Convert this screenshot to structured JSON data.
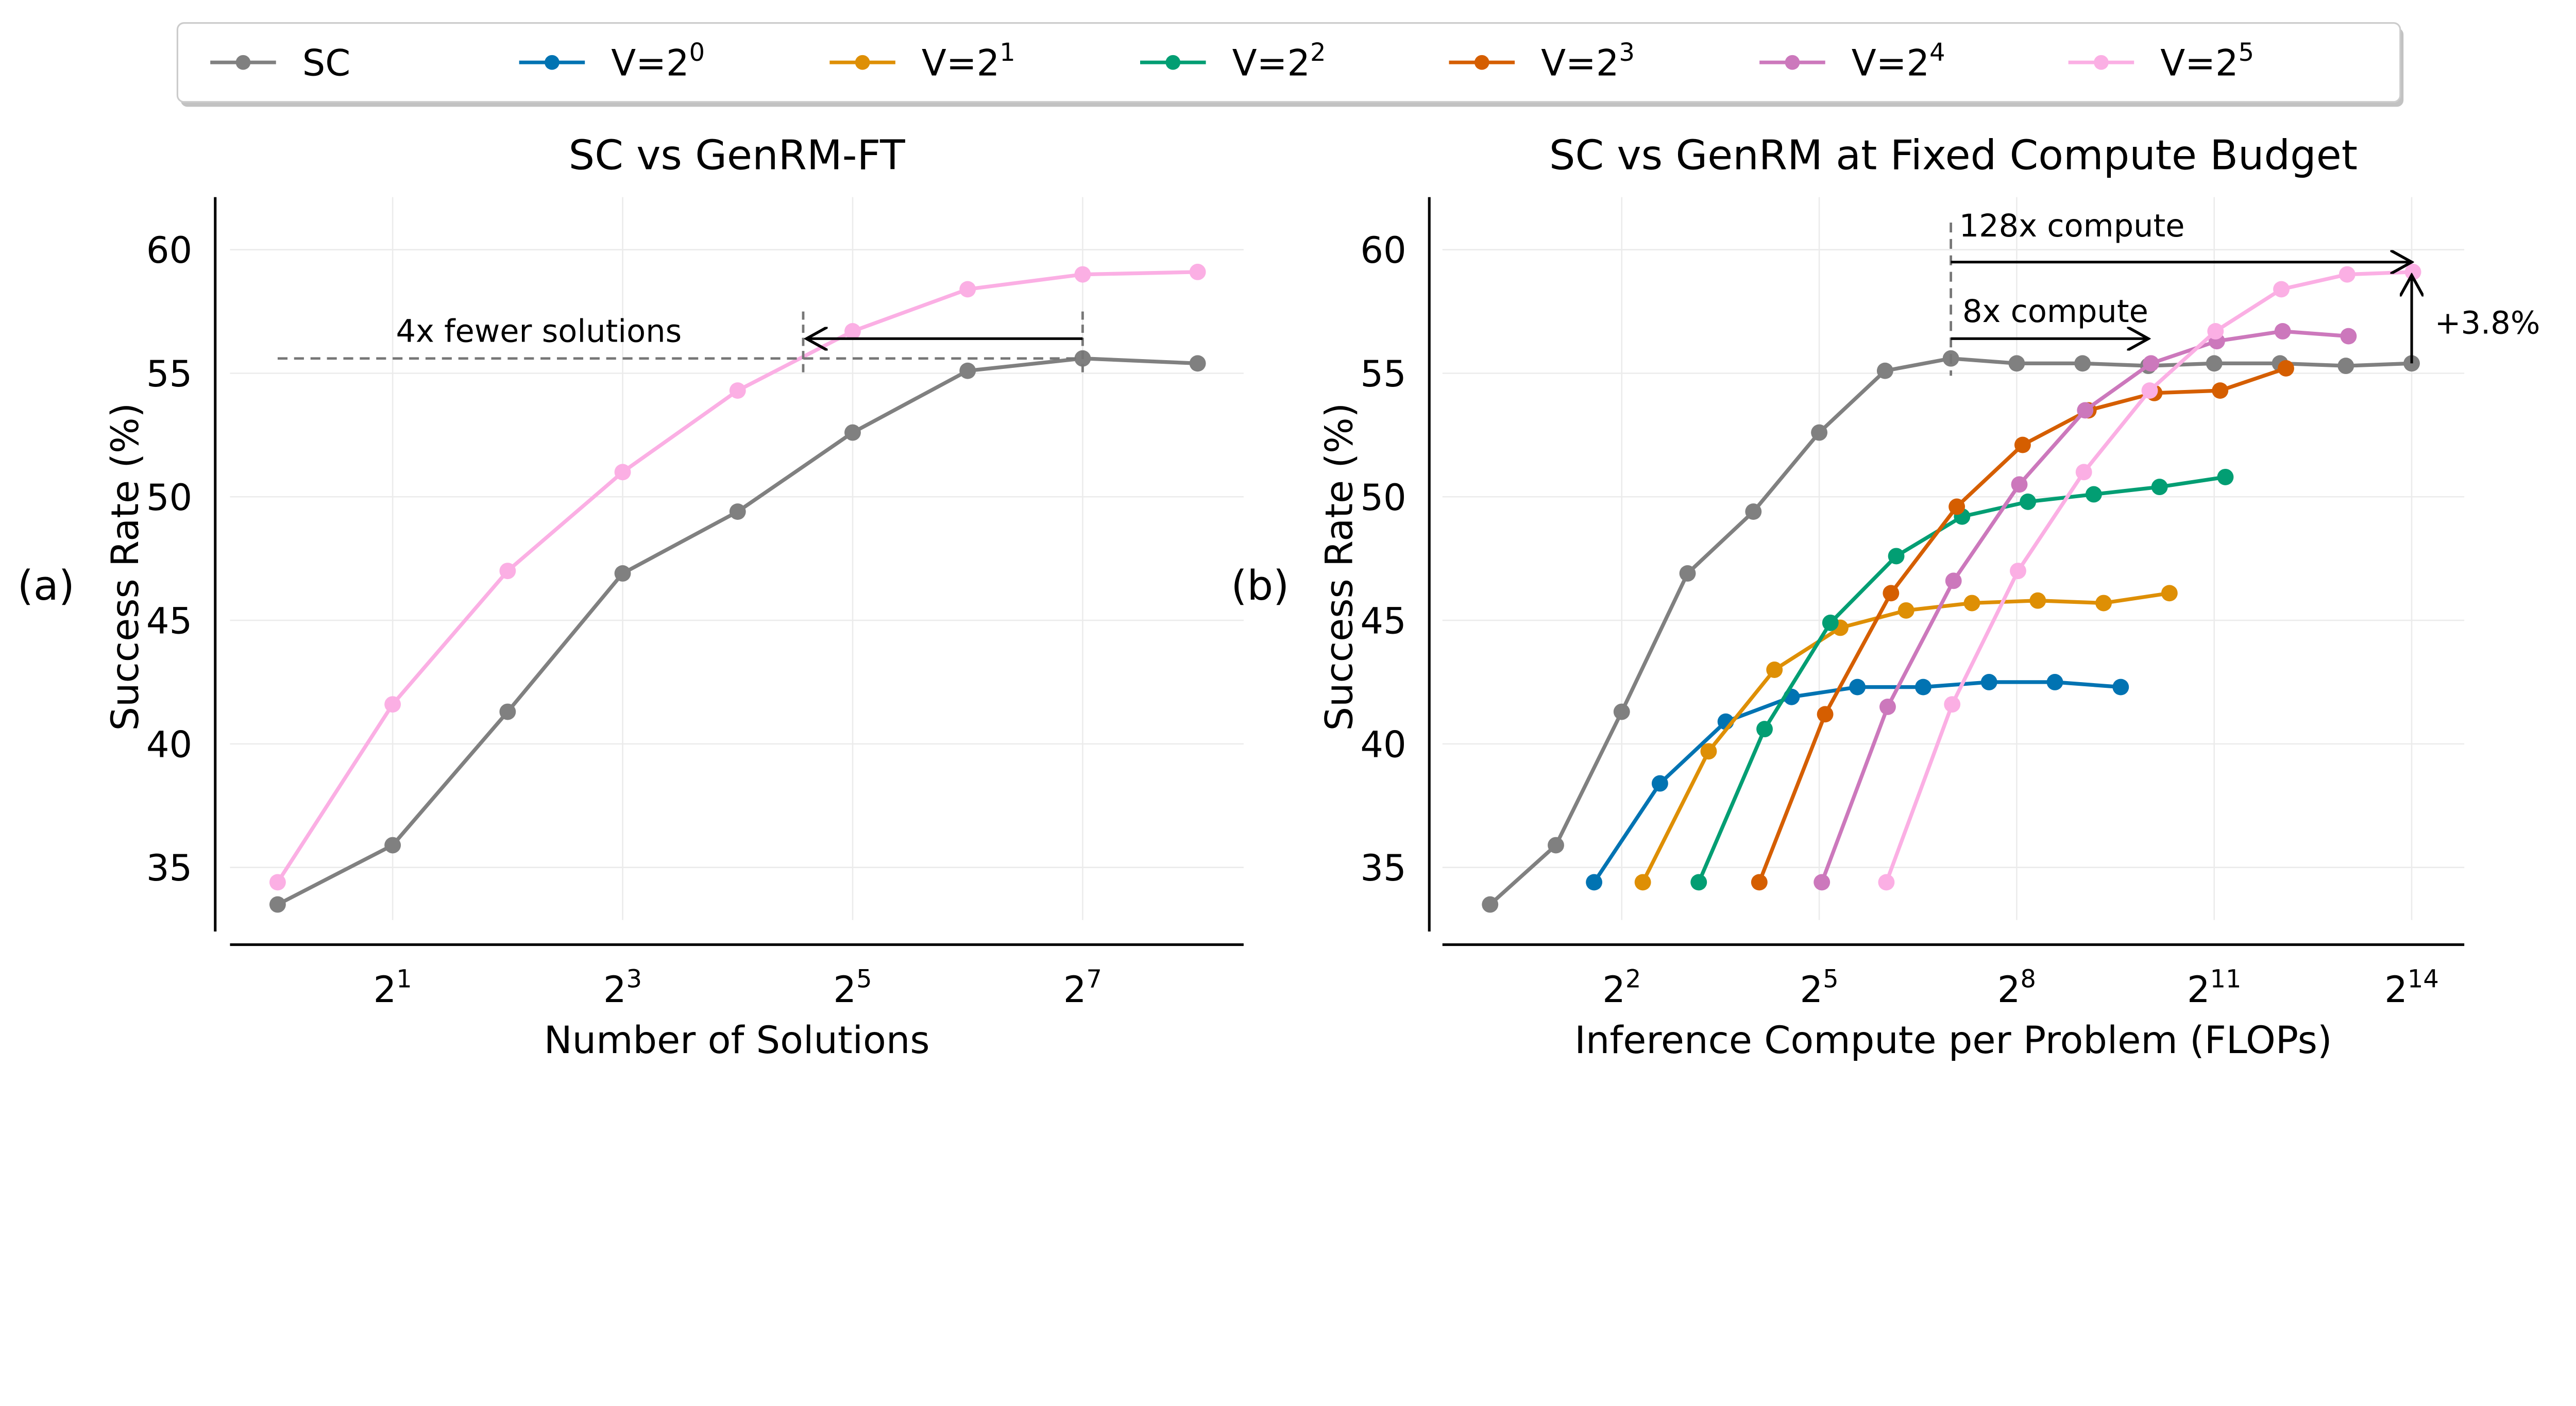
{
  "legend": {
    "placement": "top-center",
    "entries": [
      {
        "label": "SC",
        "sup": "",
        "color": "#808080"
      },
      {
        "label": "V=2",
        "sup": "0",
        "color": "#0173b2"
      },
      {
        "label": "V=2",
        "sup": "1",
        "color": "#de8f05"
      },
      {
        "label": "V=2",
        "sup": "2",
        "color": "#029e73"
      },
      {
        "label": "V=2",
        "sup": "3",
        "color": "#d55e00"
      },
      {
        "label": "V=2",
        "sup": "4",
        "color": "#cc78bc"
      },
      {
        "label": "V=2",
        "sup": "5",
        "color": "#fbafe4"
      }
    ]
  },
  "chart_data": [
    {
      "type": "line",
      "panel_label": "(a)",
      "title": "SC vs GenRM-FT",
      "xlabel": "Number of Solutions",
      "ylabel": "Success Rate (%)",
      "x_scale": "log2",
      "x_exponents": [
        0,
        1,
        2,
        3,
        4,
        5,
        6,
        7,
        8
      ],
      "xticks": [
        {
          "base": "2",
          "exp": "1"
        },
        {
          "base": "2",
          "exp": "3"
        },
        {
          "base": "2",
          "exp": "5"
        },
        {
          "base": "2",
          "exp": "7"
        }
      ],
      "yticks": [
        "35",
        "40",
        "45",
        "50",
        "55",
        "60"
      ],
      "ylim": [
        32.3,
        62
      ],
      "grid": true,
      "series": [
        {
          "name": "SC",
          "color": "#808080",
          "values": [
            33.5,
            35.9,
            41.3,
            46.9,
            49.4,
            52.6,
            55.1,
            55.6,
            55.4
          ]
        },
        {
          "name": "V=2^5",
          "color": "#fbafe4",
          "values": [
            34.4,
            41.6,
            47.0,
            51.0,
            54.3,
            56.7,
            58.4,
            59.0,
            59.1
          ]
        }
      ],
      "annotations": [
        {
          "text": "4x fewer solutions",
          "type": "arrow",
          "from_exp": 7,
          "to_exp": 4.57,
          "y": 56.4,
          "dashed_level": 55.6
        }
      ]
    },
    {
      "type": "line",
      "panel_label": "(b)",
      "title": "SC vs GenRM at Fixed Compute Budget",
      "xlabel": "Inference Compute per Problem (FLOPs)",
      "ylabel": "Success Rate (%)",
      "x_scale": "log2",
      "xticks": [
        {
          "base": "2",
          "exp": "2"
        },
        {
          "base": "2",
          "exp": "5"
        },
        {
          "base": "2",
          "exp": "8"
        },
        {
          "base": "2",
          "exp": "11"
        },
        {
          "base": "2",
          "exp": "14"
        }
      ],
      "yticks": [
        "35",
        "40",
        "45",
        "50",
        "55",
        "60"
      ],
      "ylim": [
        32.3,
        62
      ],
      "grid": true,
      "series": [
        {
          "name": "SC",
          "color": "#808080",
          "x_exponents": [
            0,
            1,
            2,
            3,
            4,
            5,
            6,
            7,
            8,
            9,
            10,
            11,
            12,
            13,
            14
          ],
          "values": [
            33.5,
            35.9,
            41.3,
            46.9,
            49.4,
            52.6,
            55.1,
            55.6,
            55.4,
            55.4,
            55.3,
            55.4,
            55.4,
            55.3,
            55.4
          ]
        },
        {
          "name": "V=2^0",
          "color": "#0173b2",
          "x_exponents": [
            1.58,
            2.58,
            3.58,
            4.58,
            5.58,
            6.58,
            7.58,
            8.58,
            9.58
          ],
          "values": [
            34.4,
            38.4,
            40.9,
            41.9,
            42.3,
            42.3,
            42.5,
            42.5,
            42.3
          ]
        },
        {
          "name": "V=2^1",
          "color": "#de8f05",
          "x_exponents": [
            2.32,
            3.32,
            4.32,
            5.32,
            6.32,
            7.32,
            8.32,
            9.32,
            10.32
          ],
          "values": [
            34.4,
            39.7,
            43.0,
            44.7,
            45.4,
            45.7,
            45.8,
            45.7,
            46.1
          ]
        },
        {
          "name": "V=2^2",
          "color": "#029e73",
          "x_exponents": [
            3.17,
            4.17,
            5.17,
            6.17,
            7.17,
            8.17,
            9.17,
            10.17,
            11.17
          ],
          "values": [
            34.4,
            40.6,
            44.9,
            47.6,
            49.2,
            49.8,
            50.1,
            50.4,
            50.8
          ]
        },
        {
          "name": "V=2^3",
          "color": "#d55e00",
          "x_exponents": [
            4.09,
            5.09,
            6.09,
            7.09,
            8.09,
            9.09,
            10.09,
            11.09,
            12.09
          ],
          "values": [
            34.4,
            41.2,
            46.1,
            49.6,
            52.1,
            53.5,
            54.2,
            54.3,
            55.2
          ]
        },
        {
          "name": "V=2^4",
          "color": "#cc78bc",
          "x_exponents": [
            5.04,
            6.04,
            7.04,
            8.04,
            9.04,
            10.04,
            11.04,
            12.04,
            13.04
          ],
          "values": [
            34.4,
            41.5,
            46.6,
            50.5,
            53.5,
            55.4,
            56.3,
            56.7,
            56.5
          ]
        },
        {
          "name": "V=2^5",
          "color": "#fbafe4",
          "x_exponents": [
            6.02,
            7.02,
            8.02,
            9.02,
            10.02,
            11.02,
            12.02,
            13.02,
            14.02
          ],
          "values": [
            34.4,
            41.6,
            47.0,
            51.0,
            54.3,
            56.7,
            58.4,
            59.0,
            59.1
          ]
        }
      ],
      "annotations": [
        {
          "text": "128x compute",
          "from_exp": 7,
          "to_exp": 14,
          "y": 59.5
        },
        {
          "text": "8x compute",
          "from_exp": 7,
          "to_exp": 10,
          "y": 56.4
        },
        {
          "text": "+3.8%",
          "x_exp": 14,
          "from_y": 55.4,
          "to_y": 59.1
        }
      ]
    }
  ]
}
